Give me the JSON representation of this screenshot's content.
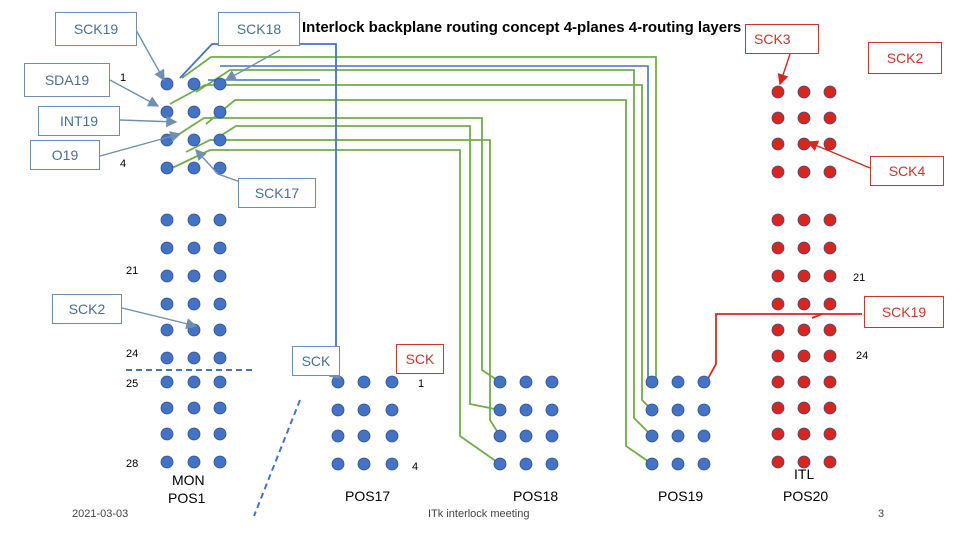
{
  "title": "Interlock backplane routing concept 4-planes 4-routing layers",
  "labels": {
    "sck19_top": "SCK19",
    "sck18": "SCK18",
    "sda19": "SDA19",
    "int19": "INT19",
    "o19": "O19",
    "sck17": "SCK17",
    "sck2_left": "SCK2",
    "sck_blue": "SCK",
    "sck_red": "SCK",
    "sck3": "SCK3",
    "sck2_right": "SCK2",
    "sck4": "SCK4",
    "sck19_right": "SCK19"
  },
  "row_numbers": {
    "n1_left": "1",
    "n4_left": "4",
    "n21_left": "21",
    "n24_left": "24",
    "n25_left": "25",
    "n28_left": "28",
    "n21_right": "21",
    "n24_right": "24",
    "n1_mid": "1",
    "n4_mid": "4"
  },
  "positions": {
    "mon": "MON",
    "pos1": "POS1",
    "pos17": "POS17",
    "pos18": "POS18",
    "pos19": "POS19",
    "itl": "ITL",
    "pos20": "POS20"
  },
  "footer": {
    "date": "2021-03-03",
    "meeting": "ITk interlock meeting",
    "page": "3"
  },
  "colors": {
    "blue_dot": "#4472c4",
    "red_dot": "#d9261c",
    "green_trace": "#70ad47",
    "blue_trace": "#4472c4",
    "red_trace": "#d9261c"
  }
}
